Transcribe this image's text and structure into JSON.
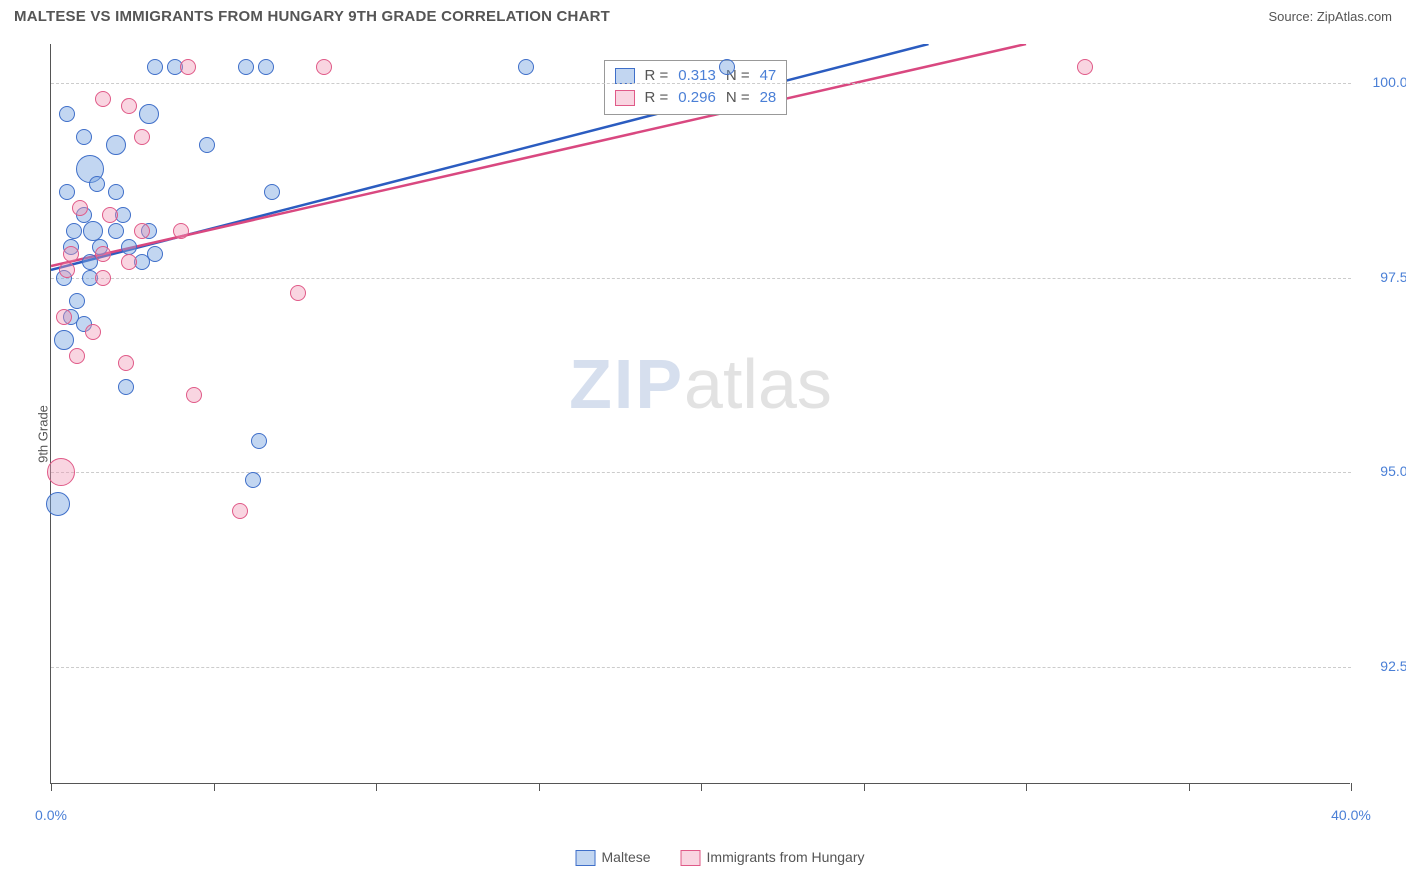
{
  "title": "MALTESE VS IMMIGRANTS FROM HUNGARY 9TH GRADE CORRELATION CHART",
  "source": "Source: ZipAtlas.com",
  "y_axis_title": "9th Grade",
  "watermark_a": "ZIP",
  "watermark_b": "atlas",
  "chart": {
    "type": "scatter",
    "xlim": [
      0,
      40
    ],
    "ylim": [
      91.0,
      100.5
    ],
    "x_ticks": [
      0,
      5,
      10,
      15,
      20,
      25,
      30,
      35,
      40
    ],
    "x_tick_labels": {
      "0": "0.0%",
      "40": "40.0%"
    },
    "y_gridlines": [
      92.5,
      95.0,
      97.5,
      100.0
    ],
    "y_tick_labels": {
      "92.5": "92.5%",
      "95.0": "95.0%",
      "97.5": "97.5%",
      "100.0": "100.0%"
    },
    "background": "#ffffff",
    "grid_color": "#cccccc",
    "axis_color": "#555555",
    "series": [
      {
        "name": "Maltese",
        "stroke": "#3f6fc9",
        "fill": "rgba(120,165,225,0.45)",
        "line_color": "#2b5cc0",
        "R": "0.313",
        "N": "47",
        "trend": {
          "x1": 0,
          "y1": 97.6,
          "x2": 27,
          "y2": 100.5
        },
        "points": [
          {
            "x": 3.2,
            "y": 100.2,
            "r": 8
          },
          {
            "x": 3.8,
            "y": 100.2,
            "r": 8
          },
          {
            "x": 6.0,
            "y": 100.2,
            "r": 8
          },
          {
            "x": 6.6,
            "y": 100.2,
            "r": 8
          },
          {
            "x": 14.6,
            "y": 100.2,
            "r": 8
          },
          {
            "x": 20.8,
            "y": 100.2,
            "r": 8
          },
          {
            "x": 0.5,
            "y": 99.6,
            "r": 8
          },
          {
            "x": 3.0,
            "y": 99.6,
            "r": 10
          },
          {
            "x": 1.0,
            "y": 99.3,
            "r": 8
          },
          {
            "x": 2.0,
            "y": 99.2,
            "r": 10
          },
          {
            "x": 4.8,
            "y": 99.2,
            "r": 8
          },
          {
            "x": 1.2,
            "y": 98.9,
            "r": 14
          },
          {
            "x": 1.4,
            "y": 98.7,
            "r": 8
          },
          {
            "x": 0.5,
            "y": 98.6,
            "r": 8
          },
          {
            "x": 2.0,
            "y": 98.6,
            "r": 8
          },
          {
            "x": 6.8,
            "y": 98.6,
            "r": 8
          },
          {
            "x": 1.0,
            "y": 98.3,
            "r": 8
          },
          {
            "x": 2.2,
            "y": 98.3,
            "r": 8
          },
          {
            "x": 0.7,
            "y": 98.1,
            "r": 8
          },
          {
            "x": 1.3,
            "y": 98.1,
            "r": 10
          },
          {
            "x": 2.0,
            "y": 98.1,
            "r": 8
          },
          {
            "x": 3.0,
            "y": 98.1,
            "r": 8
          },
          {
            "x": 0.6,
            "y": 97.9,
            "r": 8
          },
          {
            "x": 1.5,
            "y": 97.9,
            "r": 8
          },
          {
            "x": 2.4,
            "y": 97.9,
            "r": 8
          },
          {
            "x": 3.2,
            "y": 97.8,
            "r": 8
          },
          {
            "x": 1.2,
            "y": 97.7,
            "r": 8
          },
          {
            "x": 2.8,
            "y": 97.7,
            "r": 8
          },
          {
            "x": 0.4,
            "y": 97.5,
            "r": 8
          },
          {
            "x": 1.2,
            "y": 97.5,
            "r": 8
          },
          {
            "x": 0.8,
            "y": 97.2,
            "r": 8
          },
          {
            "x": 0.6,
            "y": 97.0,
            "r": 8
          },
          {
            "x": 1.0,
            "y": 96.9,
            "r": 8
          },
          {
            "x": 0.4,
            "y": 96.7,
            "r": 10
          },
          {
            "x": 2.3,
            "y": 96.1,
            "r": 8
          },
          {
            "x": 6.4,
            "y": 95.4,
            "r": 8
          },
          {
            "x": 6.2,
            "y": 94.9,
            "r": 8
          },
          {
            "x": 0.2,
            "y": 94.6,
            "r": 12
          }
        ]
      },
      {
        "name": "Immigants from Hungary",
        "display": "Immigrants from Hungary",
        "stroke": "#e05a88",
        "fill": "rgba(240,150,180,0.40)",
        "line_color": "#d94880",
        "R": "0.296",
        "N": "28",
        "trend": {
          "x1": 0,
          "y1": 97.65,
          "x2": 30,
          "y2": 100.5
        },
        "points": [
          {
            "x": 4.2,
            "y": 100.2,
            "r": 8
          },
          {
            "x": 8.4,
            "y": 100.2,
            "r": 8
          },
          {
            "x": 31.8,
            "y": 100.2,
            "r": 8
          },
          {
            "x": 1.6,
            "y": 99.8,
            "r": 8
          },
          {
            "x": 2.4,
            "y": 99.7,
            "r": 8
          },
          {
            "x": 2.8,
            "y": 99.3,
            "r": 8
          },
          {
            "x": 0.9,
            "y": 98.4,
            "r": 8
          },
          {
            "x": 1.8,
            "y": 98.3,
            "r": 8
          },
          {
            "x": 2.8,
            "y": 98.1,
            "r": 8
          },
          {
            "x": 4.0,
            "y": 98.1,
            "r": 8
          },
          {
            "x": 0.6,
            "y": 97.8,
            "r": 8
          },
          {
            "x": 1.6,
            "y": 97.8,
            "r": 8
          },
          {
            "x": 2.4,
            "y": 97.7,
            "r": 8
          },
          {
            "x": 0.5,
            "y": 97.6,
            "r": 8
          },
          {
            "x": 1.6,
            "y": 97.5,
            "r": 8
          },
          {
            "x": 7.6,
            "y": 97.3,
            "r": 8
          },
          {
            "x": 0.4,
            "y": 97.0,
            "r": 8
          },
          {
            "x": 1.3,
            "y": 96.8,
            "r": 8
          },
          {
            "x": 0.8,
            "y": 96.5,
            "r": 8
          },
          {
            "x": 2.3,
            "y": 96.4,
            "r": 8
          },
          {
            "x": 4.4,
            "y": 96.0,
            "r": 8
          },
          {
            "x": 0.3,
            "y": 95.0,
            "r": 14
          },
          {
            "x": 5.8,
            "y": 94.5,
            "r": 8
          }
        ]
      }
    ]
  },
  "legend_top_labels": {
    "R": "R =",
    "N": "N ="
  },
  "legend_bottom": [
    "Maltese",
    "Immigrants from Hungary"
  ]
}
